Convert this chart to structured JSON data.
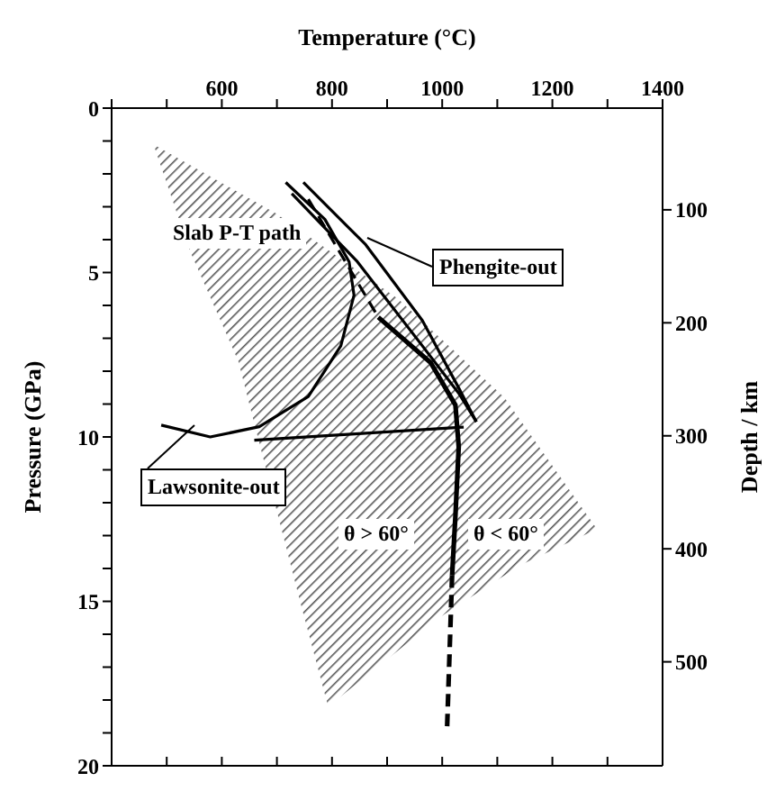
{
  "chart_data": {
    "type": "line",
    "xlabel": "Temperature (°C)",
    "ylabel": "Pressure (GPa)",
    "y2label": "Depth / km",
    "xlim": [
      400,
      1400
    ],
    "xticks": [
      {
        "value": 400,
        "label": null
      },
      {
        "value": 500,
        "label": null
      },
      600,
      {
        "value": 700,
        "label": null
      },
      800,
      {
        "value": 900,
        "label": null
      },
      1000,
      {
        "value": 1100,
        "label": null
      },
      1200,
      {
        "value": 1300,
        "label": null
      },
      1400
    ],
    "ylim": [
      20,
      0
    ],
    "yticks": [
      0,
      {
        "value": 1,
        "label": null
      },
      {
        "value": 2,
        "label": null
      },
      {
        "value": 3,
        "label": null
      },
      {
        "value": 4,
        "label": null
      },
      5,
      {
        "value": 6,
        "label": null
      },
      {
        "value": 7,
        "label": null
      },
      {
        "value": 8,
        "label": null
      },
      {
        "value": 9,
        "label": null
      },
      10,
      {
        "value": 11,
        "label": null
      },
      {
        "value": 12,
        "label": null
      },
      {
        "value": 13,
        "label": null
      },
      {
        "value": 14,
        "label": null
      },
      15,
      {
        "value": 16,
        "label": null
      },
      {
        "value": 17,
        "label": null
      },
      {
        "value": 18,
        "label": null
      },
      {
        "value": 19,
        "label": null
      },
      20
    ],
    "y2lim": [
      592,
      10
    ],
    "y2ticks": [
      100,
      200,
      300,
      400,
      500
    ],
    "marker": "none",
    "annotations": [
      "Slab P-T path",
      "θ > 60°",
      "θ < 60°"
    ],
    "series": [
      {
        "type": "area",
        "color": "#555555",
        "x": [
          476,
          698,
          920,
          1113,
          1281,
          1142,
          994,
          793,
          742,
          630,
          541,
          476
        ],
        "values": [
          1.1,
          3.2,
          5.8,
          8.8,
          12.8,
          13.9,
          15.5,
          18.2,
          15.0,
          7.7,
          4.3,
          1.1
        ]
      },
      {
        "name": "Phengite-out",
        "color": "#000000",
        "line_style": "solid",
        "x": [
          748,
          861,
          964,
          1030,
          1062
        ],
        "values": [
          2.26,
          4.15,
          6.46,
          8.51,
          9.54
        ]
      },
      {
        "color": "#000000",
        "line_style": "solid",
        "x": [
          727,
          846,
          964,
          1030,
          1062
        ],
        "values": [
          2.6,
          4.67,
          7.23,
          8.67,
          9.54
        ]
      },
      {
        "name": "Lawsonite-out",
        "color": "#000000",
        "line_style": "solid",
        "x": [
          716,
          787,
          831,
          840,
          816,
          757,
          668,
          579,
          490
        ],
        "values": [
          2.26,
          3.38,
          4.67,
          5.69,
          7.23,
          8.77,
          9.69,
          10.0,
          9.64
        ]
      },
      {
        "color": "#000000",
        "line_style": "solid",
        "x": [
          659,
          1039
        ],
        "values": [
          10.1,
          9.7
        ]
      },
      {
        "color": "#000000",
        "line_style": "dashed",
        "x": [
          757,
          884
        ],
        "values": [
          2.77,
          6.36
        ]
      },
      {
        "color": "#000000",
        "line_style": "solid",
        "x": [
          884,
          979,
          1024,
          1030,
          1024,
          1018
        ],
        "values": [
          6.36,
          7.74,
          9.03,
          10.3,
          12.4,
          14.2
        ]
      },
      {
        "color": "#000000",
        "line_style": "dashed",
        "x": [
          1018,
          1009
        ],
        "values": [
          14.2,
          18.8
        ]
      }
    ]
  }
}
